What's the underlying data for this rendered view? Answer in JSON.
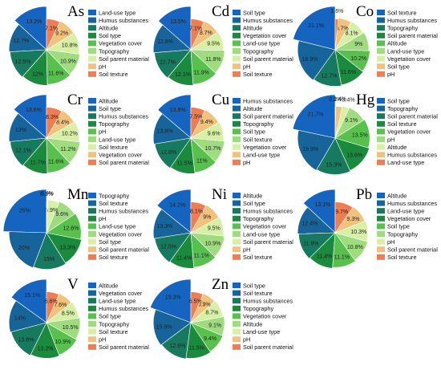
{
  "figure": {
    "colors": [
      "#1565c0",
      "#17649a",
      "#167a5e",
      "#1a8a3c",
      "#58c04c",
      "#9fdc7f",
      "#d7f0a6",
      "#f1c27c",
      "#ef7d52",
      "#c81e1e"
    ]
  },
  "chart_data": [
    {
      "type": "pie",
      "title": "As",
      "series": [
        {
          "name": "Land-use type",
          "value": 13.2
        },
        {
          "name": "Humus substances",
          "value": 12.7
        },
        {
          "name": "Altitude",
          "value": 12.5
        },
        {
          "name": "Soil type",
          "value": 12.0
        },
        {
          "name": "Vegetation cover",
          "value": 11.6
        },
        {
          "name": "Topography",
          "value": 10.9
        },
        {
          "name": "Soil parent material",
          "value": 10.8
        },
        {
          "name": "pH",
          "value": 9.2
        },
        {
          "name": "Soil texture",
          "value": 7.1
        }
      ],
      "labels": [
        "13.2%",
        "12.7%",
        "12.5%",
        "12%",
        "11.6%",
        "10.9%",
        "10.8%",
        "9.2%",
        "7.1%"
      ]
    },
    {
      "type": "pie",
      "title": "Cd",
      "series": [
        {
          "name": "Soil type",
          "value": 13.5
        },
        {
          "name": "Humus substances",
          "value": 12.8
        },
        {
          "name": "Altitude",
          "value": 12.7
        },
        {
          "name": "Vegetation cover",
          "value": 12.1
        },
        {
          "name": "Land-use type",
          "value": 11.9
        },
        {
          "name": "Topography",
          "value": 11.8
        },
        {
          "name": "Soil parent material",
          "value": 9.5
        },
        {
          "name": "pH",
          "value": 8.7
        },
        {
          "name": "Soil texture",
          "value": 7.1
        }
      ],
      "labels": [
        "13.5%",
        "12.8%",
        "12.7%",
        "12.1%",
        "11.9%",
        "11.8%",
        "9.5%",
        "8.7%",
        "7.1%"
      ]
    },
    {
      "type": "pie",
      "title": "Co",
      "series": [
        {
          "name": "Soil texture",
          "value": 21.1
        },
        {
          "name": "Humus substances",
          "value": 18.9
        },
        {
          "name": "Topography",
          "value": 12.7
        },
        {
          "name": "Soil parent material",
          "value": 11.6
        },
        {
          "name": "Altitude",
          "value": 10.2
        },
        {
          "name": "Land-use type",
          "value": 9.0
        },
        {
          "name": "Vegetation cover",
          "value": 8.1
        },
        {
          "name": "Soil type",
          "value": 6.7
        },
        {
          "name": "pH",
          "value": 1.6
        }
      ],
      "labels": [
        "21.1%",
        "18.9%",
        "12.7%",
        "11.6%",
        "10.2%",
        "9%",
        "8.1%",
        "6.7%",
        "1.6%"
      ]
    },
    {
      "type": "pie",
      "title": "Cr",
      "series": [
        {
          "name": "Altitude",
          "value": 13.6
        },
        {
          "name": "Soil type",
          "value": 13.0
        },
        {
          "name": "Humus substances",
          "value": 12.1
        },
        {
          "name": "Topography",
          "value": 11.7
        },
        {
          "name": "pH",
          "value": 11.6
        },
        {
          "name": "Land-use type",
          "value": 11.2
        },
        {
          "name": "Soil texture",
          "value": 10.2
        },
        {
          "name": "Vegetation cover",
          "value": 8.4
        },
        {
          "name": "Soil parent material",
          "value": 8.3
        }
      ],
      "labels": [
        "13.6%",
        "13%",
        "12.1%",
        "11.7%",
        "11.6%",
        "11.2%",
        "10.2%",
        "8.4%",
        "8.3%"
      ]
    },
    {
      "type": "pie",
      "title": "Cu",
      "series": [
        {
          "name": "Humus substances",
          "value": 13.8
        },
        {
          "name": "Altitude",
          "value": 13.8
        },
        {
          "name": "Soil parent material",
          "value": 12.8
        },
        {
          "name": "Topography",
          "value": 11.5
        },
        {
          "name": "Soil type",
          "value": 11.0
        },
        {
          "name": "Soil texture",
          "value": 10.7
        },
        {
          "name": "Vegetation cover",
          "value": 9.6
        },
        {
          "name": "Land-use type",
          "value": 9.4
        },
        {
          "name": "pH",
          "value": 7.5
        }
      ],
      "labels": [
        "13.8%",
        "13.8%",
        "12.8%",
        "11.5%",
        "11%",
        "10.7%",
        "9.6%",
        "9.4%",
        "7.5%"
      ]
    },
    {
      "type": "pie",
      "title": "Hg",
      "series": [
        {
          "name": "Soil type",
          "value": 21.7
        },
        {
          "name": "Topography",
          "value": 19.9
        },
        {
          "name": "Soil parent material",
          "value": 15.3
        },
        {
          "name": "Soil texture",
          "value": 13.6
        },
        {
          "name": "Vegetation cover",
          "value": 13.5
        },
        {
          "name": "pH",
          "value": 9.1
        },
        {
          "name": "Altitude",
          "value": 3.4
        },
        {
          "name": "Humus substances",
          "value": 3.4
        },
        {
          "name": "Land-use type",
          "value": 0.2
        }
      ],
      "labels": [
        "21.7%",
        "19.9%",
        "15.3%",
        "13.6%",
        "13.5%",
        "9.1%",
        "3.4%",
        "3.4%",
        "0.2%"
      ]
    },
    {
      "type": "pie",
      "title": "Mn",
      "series": [
        {
          "name": "Topography",
          "value": 25.0
        },
        {
          "name": "Soil texture",
          "value": 20.0
        },
        {
          "name": "Humus substances",
          "value": 15.0
        },
        {
          "name": "pH",
          "value": 13.3
        },
        {
          "name": "Land-use type",
          "value": 12.6
        },
        {
          "name": "Vegetation cover",
          "value": 9.6
        },
        {
          "name": "Soil type",
          "value": 5.9
        },
        {
          "name": "Soil parent material",
          "value": 0.4
        },
        {
          "name": "Soil texture",
          "value": 0.1
        }
      ],
      "labels": [
        "25%",
        "20%",
        "15%",
        "13.3%",
        "12.6%",
        "9.6%",
        "5.9%",
        "0.4%",
        "0.1%"
      ]
    },
    {
      "type": "pie",
      "title": "Ni",
      "series": [
        {
          "name": "Altitude",
          "value": 14.2
        },
        {
          "name": "Soil type",
          "value": 13.3
        },
        {
          "name": "Humus substances",
          "value": 12.5
        },
        {
          "name": "Topography",
          "value": 11.4
        },
        {
          "name": "Vegetation cover",
          "value": 11.1
        },
        {
          "name": "Land-use type",
          "value": 10.9
        },
        {
          "name": "Soil parent material",
          "value": 9.5
        },
        {
          "name": "pH",
          "value": 9.0
        },
        {
          "name": "Soil texture",
          "value": 8.1
        }
      ],
      "labels": [
        "14.2%",
        "13.3%",
        "12.5%",
        "11.4%",
        "11.1%",
        "10.9%",
        "9.5%",
        "9%",
        "8.1%"
      ]
    },
    {
      "type": "pie",
      "title": "Pb",
      "series": [
        {
          "name": "Altitude",
          "value": 13.1
        },
        {
          "name": "Humus substances",
          "value": 12.4
        },
        {
          "name": "Land-use type",
          "value": 11.9
        },
        {
          "name": "Vegetation cover",
          "value": 11.4
        },
        {
          "name": "Soil type",
          "value": 11.1
        },
        {
          "name": "Topography",
          "value": 10.8
        },
        {
          "name": "pH",
          "value": 10.3
        },
        {
          "name": "Soil parent material",
          "value": 9.3
        },
        {
          "name": "Soil texture",
          "value": 9.7
        }
      ],
      "labels": [
        "13.1%",
        "12.4%",
        "11.9%",
        "11.4%",
        "11.1%",
        "10.8%",
        "10.3%",
        "9.3%",
        "9.7%"
      ]
    },
    {
      "type": "pie",
      "title": "V",
      "series": [
        {
          "name": "Altitude",
          "value": 15.1
        },
        {
          "name": "Vegetation cover",
          "value": 14.0
        },
        {
          "name": "Land-use type",
          "value": 13.6
        },
        {
          "name": "Humus substances",
          "value": 13.2
        },
        {
          "name": "Soil type",
          "value": 10.9
        },
        {
          "name": "Topography",
          "value": 10.5
        },
        {
          "name": "Soil texture",
          "value": 8.5
        },
        {
          "name": "pH",
          "value": 7.6
        },
        {
          "name": "Soil parent material",
          "value": 6.6
        }
      ],
      "labels": [
        "15.1%",
        "14%",
        "13.6%",
        "13.2%",
        "10.9%",
        "10.5%",
        "8.5%",
        "7.6%",
        "6.6%"
      ]
    },
    {
      "type": "pie",
      "title": "Zn",
      "series": [
        {
          "name": "Soil type",
          "value": 19.3
        },
        {
          "name": "Soil texture",
          "value": 15.9
        },
        {
          "name": "Humus substances",
          "value": 12.6
        },
        {
          "name": "Topography",
          "value": 11.5
        },
        {
          "name": "Vegetation cover",
          "value": 9.4
        },
        {
          "name": "Altitude",
          "value": 9.1
        },
        {
          "name": "Land-use type",
          "value": 8.7
        },
        {
          "name": "pH",
          "value": 6.9
        },
        {
          "name": "Soil parent material",
          "value": 6.5
        }
      ],
      "labels": [
        "19.3%",
        "15.9%",
        "12.6%",
        "11.5%",
        "9.4%",
        "9.1%",
        "8.7%",
        "6.9%",
        "6.5%"
      ]
    }
  ]
}
